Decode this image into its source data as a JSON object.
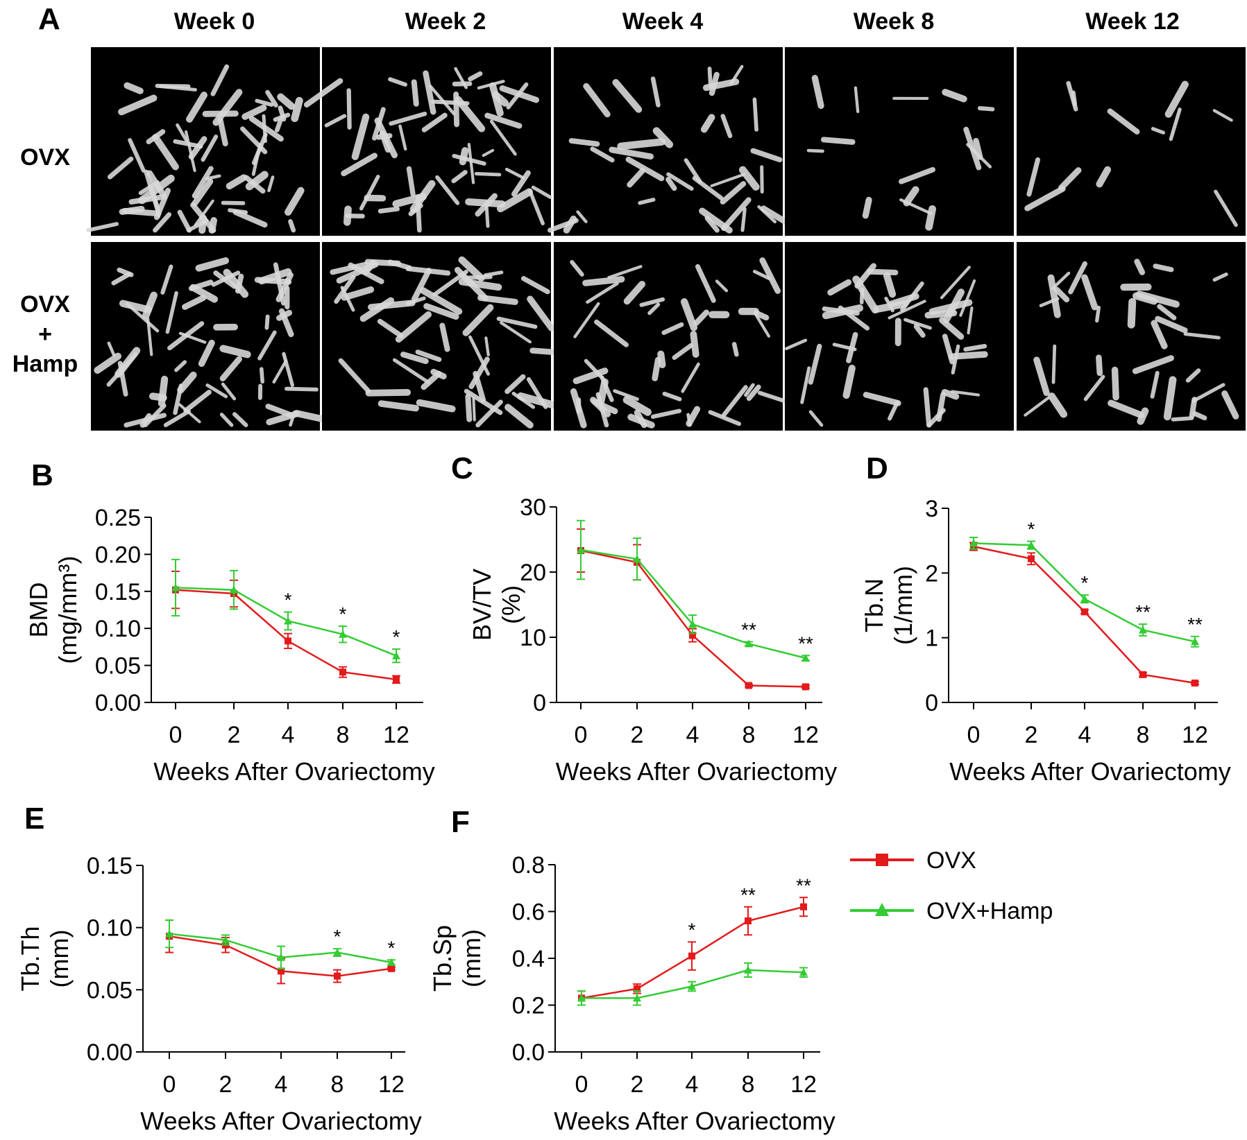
{
  "panel_letters": {
    "a": "A",
    "b": "B",
    "c": "C",
    "d": "D",
    "e": "E",
    "f": "F"
  },
  "panel_a": {
    "columns": [
      "Week 0",
      "Week 2",
      "Week 4",
      "Week 8",
      "Week 12"
    ],
    "row_ovx": "OVX",
    "row_hamp": [
      "OVX",
      "+",
      "Hamp"
    ],
    "tile_background": "#000000",
    "bone_color": "#d9d9d9"
  },
  "legend": {
    "items": [
      {
        "label": "OVX",
        "color": "#e31a1c",
        "marker": "square"
      },
      {
        "label": "OVX+Hamp",
        "color": "#33cc33",
        "marker": "triangle"
      }
    ]
  },
  "colors": {
    "ovx": "#e31a1c",
    "hamp": "#33cc33",
    "axis": "#000000"
  },
  "chart_data": [
    {
      "id": "B",
      "type": "line",
      "categories": [
        "0",
        "2",
        "4",
        "8",
        "12"
      ],
      "xlabel": "Weeks After Ovariectomy",
      "ylabel": [
        "BMD",
        "(mg/mm³)"
      ],
      "ylim": [
        0,
        0.25
      ],
      "yticks": [
        "0.00",
        "0.05",
        "0.10",
        "0.15",
        "0.20",
        "0.25"
      ],
      "series": [
        {
          "name": "OVX",
          "values": [
            0.152,
            0.147,
            0.083,
            0.041,
            0.031
          ],
          "errors": [
            0.025,
            0.018,
            0.01,
            0.007,
            0.005
          ]
        },
        {
          "name": "OVX+Hamp",
          "values": [
            0.155,
            0.152,
            0.11,
            0.092,
            0.063
          ],
          "errors": [
            0.038,
            0.026,
            0.012,
            0.011,
            0.009
          ]
        }
      ],
      "annotations": [
        "",
        "",
        "*",
        "*",
        "*"
      ]
    },
    {
      "id": "C",
      "type": "line",
      "categories": [
        "0",
        "2",
        "4",
        "8",
        "12"
      ],
      "xlabel": "Weeks After Ovariectomy",
      "ylabel": [
        "BV/TV",
        "(%)"
      ],
      "ylim": [
        0,
        30
      ],
      "yticks": [
        "0",
        "10",
        "20",
        "30"
      ],
      "series": [
        {
          "name": "OVX",
          "values": [
            23.3,
            21.5,
            10.3,
            2.6,
            2.4
          ],
          "errors": [
            3.3,
            2.7,
            1.0,
            0.2,
            0.2
          ]
        },
        {
          "name": "OVX+Hamp",
          "values": [
            23.4,
            22.0,
            12.0,
            9.0,
            6.8
          ],
          "errors": [
            4.5,
            3.2,
            1.4,
            0.3,
            0.4
          ]
        }
      ],
      "annotations": [
        "",
        "",
        "",
        "**",
        "**"
      ]
    },
    {
      "id": "D",
      "type": "line",
      "categories": [
        "0",
        "2",
        "4",
        "8",
        "12"
      ],
      "xlabel": "Weeks After Ovariectomy",
      "ylabel": [
        "Tb.N",
        "(1/mm)"
      ],
      "ylim": [
        0,
        3
      ],
      "yticks": [
        "0",
        "1",
        "2",
        "3"
      ],
      "series": [
        {
          "name": "OVX",
          "values": [
            2.41,
            2.22,
            1.4,
            0.43,
            0.3
          ],
          "errors": [
            0.06,
            0.09,
            0.03,
            0.03,
            0.02
          ]
        },
        {
          "name": "OVX+Hamp",
          "values": [
            2.46,
            2.43,
            1.6,
            1.12,
            0.94
          ],
          "errors": [
            0.09,
            0.06,
            0.06,
            0.09,
            0.08
          ]
        }
      ],
      "annotations": [
        "",
        "*",
        "*",
        "**",
        "**"
      ]
    },
    {
      "id": "E",
      "type": "line",
      "categories": [
        "0",
        "2",
        "4",
        "8",
        "12"
      ],
      "xlabel": "Weeks After Ovariectomy",
      "ylabel": [
        "Tb.Th",
        "(mm)"
      ],
      "ylim": [
        0,
        0.15
      ],
      "yticks": [
        "0.00",
        "0.05",
        "0.10",
        "0.15"
      ],
      "series": [
        {
          "name": "OVX",
          "values": [
            0.093,
            0.086,
            0.065,
            0.061,
            0.067
          ],
          "errors": [
            0.013,
            0.006,
            0.01,
            0.005,
            0.001
          ]
        },
        {
          "name": "OVX+Hamp",
          "values": [
            0.095,
            0.09,
            0.076,
            0.08,
            0.072
          ],
          "errors": [
            0.011,
            0.004,
            0.009,
            0.003,
            0.002
          ]
        }
      ],
      "annotations": [
        "",
        "",
        "",
        "*",
        "*"
      ]
    },
    {
      "id": "F",
      "type": "line",
      "categories": [
        "0",
        "2",
        "4",
        "8",
        "12"
      ],
      "xlabel": "Weeks After Ovariectomy",
      "ylabel": [
        "Tb.Sp",
        "(mm)"
      ],
      "ylim": [
        0,
        0.8
      ],
      "yticks": [
        "0.0",
        "0.2",
        "0.4",
        "0.6",
        "0.8"
      ],
      "series": [
        {
          "name": "OVX",
          "values": [
            0.23,
            0.27,
            0.41,
            0.56,
            0.62
          ],
          "errors": [
            0.03,
            0.02,
            0.06,
            0.06,
            0.04
          ]
        },
        {
          "name": "OVX+Hamp",
          "values": [
            0.23,
            0.23,
            0.28,
            0.35,
            0.34
          ],
          "errors": [
            0.03,
            0.03,
            0.02,
            0.03,
            0.02
          ]
        }
      ],
      "annotations": [
        "",
        "",
        "*",
        "**",
        "**"
      ]
    }
  ]
}
